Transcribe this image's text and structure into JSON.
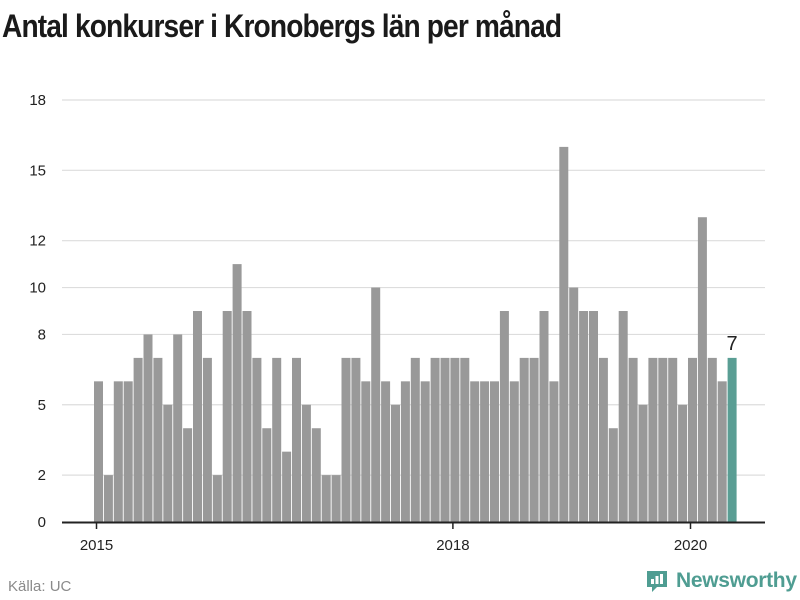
{
  "title": "Antal konkurser i Kronobergs län per månad",
  "source": "Källa: UC",
  "brand": "Newsworthy",
  "colors": {
    "bar": "#999999",
    "highlight": "#5a9e94",
    "grid": "#dddddd",
    "axis": "#222222"
  },
  "chart_data": {
    "type": "bar",
    "title": "Antal konkurser i Kronobergs län per månad",
    "xlabel": "",
    "ylabel": "",
    "ylim": [
      0,
      18
    ],
    "y_ticks": [
      0,
      2,
      5,
      8,
      10,
      12,
      15,
      18
    ],
    "x_ticks": [
      {
        "label": "2015",
        "index": 0
      },
      {
        "label": "2018",
        "index": 36
      },
      {
        "label": "2020",
        "index": 60
      }
    ],
    "grid": "horizontal",
    "values": [
      6,
      2,
      6,
      6,
      7,
      8,
      7,
      5,
      8,
      4,
      9,
      7,
      2,
      9,
      11,
      9,
      7,
      4,
      7,
      3,
      7,
      5,
      4,
      2,
      2,
      7,
      7,
      6,
      10,
      6,
      5,
      6,
      7,
      6,
      7,
      7,
      7,
      7,
      6,
      6,
      6,
      9,
      6,
      7,
      7,
      9,
      6,
      16,
      10,
      9,
      9,
      7,
      4,
      9,
      7,
      5,
      7,
      7,
      7,
      5,
      7,
      13,
      7,
      6,
      7
    ],
    "highlight_index": 64,
    "highlight_label": "7"
  }
}
